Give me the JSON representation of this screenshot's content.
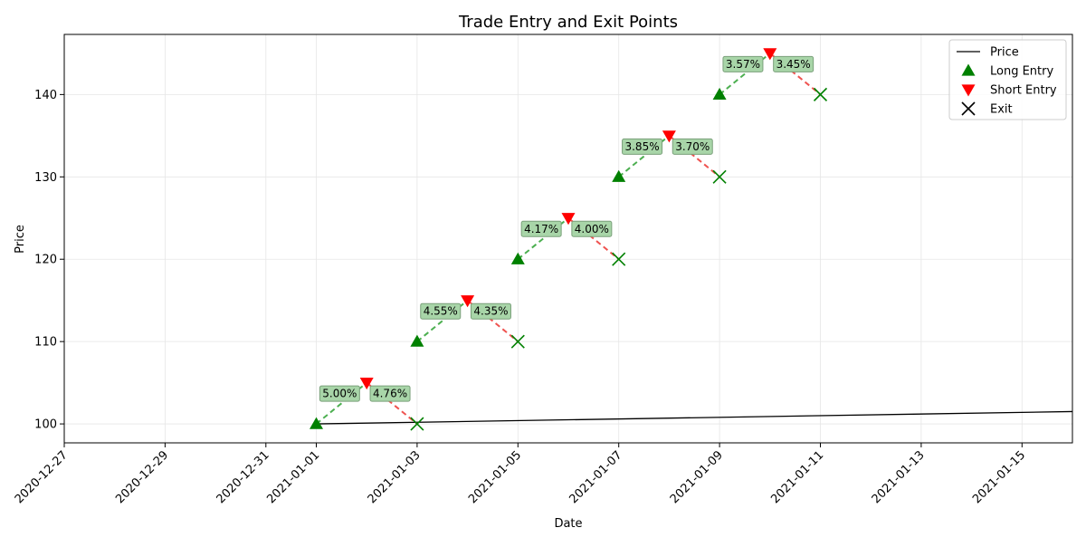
{
  "chart_data": {
    "type": "line",
    "title": "Trade Entry and Exit Points",
    "xlabel": "Date",
    "ylabel": "Price",
    "xlim": [
      "2020-12-27",
      "2021-01-16"
    ],
    "ylim": [
      97.7,
      147.3
    ],
    "x_ticks": [
      "2020-12-27",
      "2020-12-29",
      "2020-12-31",
      "2021-01-01",
      "2021-01-03",
      "2021-01-05",
      "2021-01-07",
      "2021-01-09",
      "2021-01-11",
      "2021-01-13",
      "2021-01-15"
    ],
    "y_ticks": [
      100,
      110,
      120,
      130,
      140
    ],
    "grid": true,
    "legend": {
      "placement": "top-right",
      "entries": [
        {
          "key": "price",
          "label": "Price"
        },
        {
          "key": "long",
          "label": "Long Entry"
        },
        {
          "key": "short",
          "label": "Short Entry"
        },
        {
          "key": "exit",
          "label": "Exit"
        }
      ]
    },
    "price_series": {
      "name": "Price",
      "color": "#000000",
      "points": [
        {
          "x": "2021-01-01",
          "y": 100.0
        },
        {
          "x": "2021-01-16",
          "y": 101.5
        }
      ]
    },
    "trades": [
      {
        "entry": {
          "x": "2021-01-01",
          "y": 100
        },
        "peak": {
          "x": "2021-01-02",
          "y": 105
        },
        "exit": {
          "x": "2021-01-03",
          "y": 100
        },
        "gain_label": "5.00%",
        "loss_label": "4.76%"
      },
      {
        "entry": {
          "x": "2021-01-03",
          "y": 110
        },
        "peak": {
          "x": "2021-01-04",
          "y": 115
        },
        "exit": {
          "x": "2021-01-05",
          "y": 110
        },
        "gain_label": "4.55%",
        "loss_label": "4.35%"
      },
      {
        "entry": {
          "x": "2021-01-05",
          "y": 120
        },
        "peak": {
          "x": "2021-01-06",
          "y": 125
        },
        "exit": {
          "x": "2021-01-07",
          "y": 120
        },
        "gain_label": "4.17%",
        "loss_label": "4.00%"
      },
      {
        "entry": {
          "x": "2021-01-07",
          "y": 130
        },
        "peak": {
          "x": "2021-01-08",
          "y": 135
        },
        "exit": {
          "x": "2021-01-09",
          "y": 130
        },
        "gain_label": "3.85%",
        "loss_label": "3.70%"
      },
      {
        "entry": {
          "x": "2021-01-09",
          "y": 140
        },
        "peak": {
          "x": "2021-01-10",
          "y": 145
        },
        "exit": {
          "x": "2021-01-11",
          "y": 140
        },
        "gain_label": "3.57%",
        "loss_label": "3.45%"
      }
    ],
    "colors": {
      "long": "#008000",
      "short": "#ff0000",
      "exit": "#008000",
      "long_line": "#4caf50",
      "short_line": "#ef5350",
      "label_bg": "#a8d5a8",
      "label_border": "#7aa07a",
      "grid": "#e6e6e6",
      "axis": "#000000"
    }
  }
}
